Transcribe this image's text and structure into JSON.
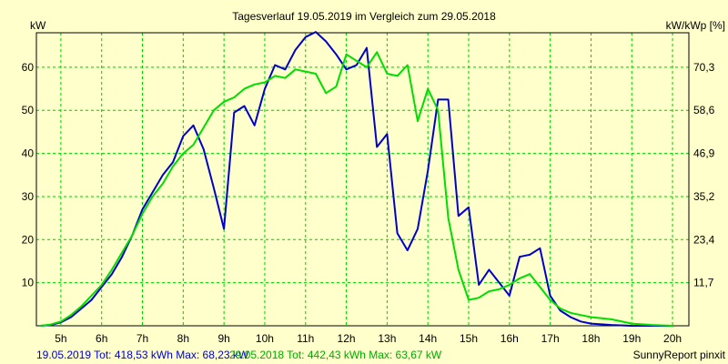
{
  "chart_data": {
    "type": "line",
    "title": "Tagesverlauf 19.05.2019 im Vergleich zum 29.05.2018",
    "ylabel_left": "kW",
    "ylabel_right": "kW/kWp [%]",
    "x_ticks": [
      "5h",
      "6h",
      "7h",
      "8h",
      "9h",
      "10h",
      "11h",
      "12h",
      "13h",
      "14h",
      "15h",
      "16h",
      "17h",
      "18h",
      "19h",
      "20h"
    ],
    "y_ticks_left": [
      "10",
      "20",
      "30",
      "40",
      "50",
      "60"
    ],
    "y_ticks_right": [
      "11,7",
      "23,4",
      "35,2",
      "46,9",
      "58,6",
      "70,3"
    ],
    "xlim": [
      4.4,
      20.4
    ],
    "ylim": [
      0,
      68
    ],
    "y_tick_values": [
      10,
      20,
      30,
      40,
      50,
      60
    ],
    "grid": true,
    "background": "#ffffcc",
    "grid_color": "#00cc00",
    "series": [
      {
        "color": "#0000cc",
        "x": [
          4.5,
          4.75,
          5.0,
          5.25,
          5.5,
          5.75,
          6.0,
          6.25,
          6.5,
          6.75,
          7.0,
          7.25,
          7.5,
          7.75,
          8.0,
          8.25,
          8.5,
          8.75,
          9.0,
          9.25,
          9.5,
          9.75,
          10.0,
          10.25,
          10.5,
          10.75,
          11.0,
          11.25,
          11.5,
          11.75,
          12.0,
          12.25,
          12.5,
          12.75,
          13.0,
          13.25,
          13.5,
          13.75,
          14.0,
          14.25,
          14.5,
          14.75,
          15.0,
          15.25,
          15.5,
          15.75,
          16.0,
          16.25,
          16.5,
          16.75,
          17.0,
          17.25,
          17.5,
          17.75,
          18.0,
          18.5,
          19.0,
          19.5,
          20.0
        ],
        "y": [
          0,
          0.2,
          0.8,
          2,
          4,
          6,
          9,
          12,
          16,
          21,
          27,
          31,
          35,
          38,
          44,
          46.5,
          41,
          32,
          22.5,
          49.5,
          51,
          46.5,
          55,
          60.5,
          59.5,
          64,
          67,
          68.2,
          66,
          63,
          59.5,
          60.5,
          64.5,
          41.5,
          44.5,
          21.5,
          17.5,
          22.5,
          36,
          52.5,
          52.5,
          25.5,
          27.5,
          9.5,
          13,
          10,
          7,
          16,
          16.5,
          18,
          7,
          3.5,
          2,
          1,
          0.5,
          0.2,
          0,
          0,
          0
        ]
      },
      {
        "color": "#00dd00",
        "x": [
          4.5,
          4.75,
          5.0,
          5.25,
          5.5,
          5.75,
          6.0,
          6.25,
          6.5,
          6.75,
          7.0,
          7.25,
          7.5,
          7.75,
          8.0,
          8.25,
          8.5,
          8.75,
          9.0,
          9.25,
          9.5,
          9.75,
          10.0,
          10.25,
          10.5,
          10.75,
          11.0,
          11.25,
          11.5,
          11.75,
          12.0,
          12.25,
          12.5,
          12.75,
          13.0,
          13.25,
          13.5,
          13.75,
          14.0,
          14.25,
          14.5,
          14.75,
          15.0,
          15.25,
          15.5,
          15.75,
          16.0,
          16.25,
          16.5,
          16.75,
          17.0,
          17.25,
          17.5,
          17.75,
          18.0,
          18.5,
          19.0,
          19.5,
          20.0
        ],
        "y": [
          0,
          0.3,
          1,
          2.5,
          4.5,
          7,
          9.5,
          13,
          17,
          21,
          26,
          30,
          33,
          37,
          40,
          42,
          46,
          50,
          52,
          53,
          55,
          56,
          56.5,
          58,
          57.5,
          59.5,
          59,
          58.5,
          54,
          55.5,
          63,
          61.5,
          60,
          63.5,
          58.5,
          58,
          60.5,
          47.5,
          55,
          50,
          25,
          13,
          6,
          6.5,
          8,
          8.5,
          9.5,
          11,
          12,
          9,
          6,
          4,
          3,
          2.5,
          2,
          1.5,
          0.5,
          0.2,
          0
        ]
      }
    ],
    "legend": [
      {
        "text": "19.05.2019 Tot: 418,53 kWh Max: 68,23 kW",
        "color": "#0000cc"
      },
      {
        "text": "29.05.2018 Tot: 442,43 kWh Max: 63,67 kW",
        "color": "#00aa00"
      }
    ],
    "footer": "SunnyReport pinxit"
  }
}
